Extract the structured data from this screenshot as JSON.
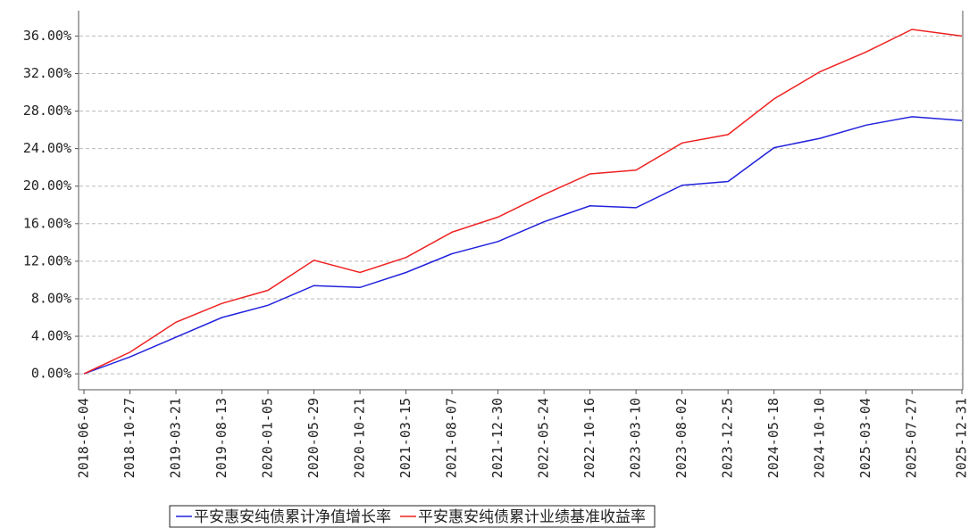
{
  "chart_data": {
    "type": "line",
    "x": [
      "2018-06-04",
      "2018-10-27",
      "2019-03-21",
      "2019-08-13",
      "2020-01-05",
      "2020-05-29",
      "2020-10-21",
      "2021-03-15",
      "2021-08-07",
      "2021-12-30",
      "2022-05-24",
      "2022-10-16",
      "2023-03-10",
      "2023-08-02",
      "2023-12-25",
      "2024-05-18",
      "2024-10-10",
      "2025-03-04",
      "2025-07-27",
      "2025-12-31"
    ],
    "series": [
      {
        "name": "平安惠安纯债累计净值增长率",
        "color": "#2222dd",
        "values": [
          0,
          1.8,
          3.9,
          6.0,
          7.3,
          9.4,
          9.2,
          10.8,
          12.8,
          14.1,
          16.2,
          17.9,
          17.7,
          20.1,
          20.5,
          24.1,
          25.1,
          26.5,
          27.4,
          27.0
        ]
      },
      {
        "name": "平安惠安纯债累计业绩基准收益率",
        "color": "#ee2222",
        "values": [
          0,
          2.3,
          5.5,
          7.5,
          8.9,
          12.1,
          10.8,
          12.4,
          15.1,
          16.7,
          19.1,
          21.3,
          21.7,
          24.6,
          25.5,
          29.3,
          32.2,
          34.3,
          36.7,
          36.0
        ]
      }
    ],
    "xlim": [
      "2018-06-04",
      "2025-12-31"
    ],
    "xticks": [
      "2018-06-04",
      "2018-10-27",
      "2019-03-21",
      "2019-08-13",
      "2020-01-05",
      "2020-05-29",
      "2020-10-21",
      "2021-03-15",
      "2021-08-07",
      "2021-12-30",
      "2022-05-24",
      "2022-10-16",
      "2023-03-10",
      "2023-08-02",
      "2023-12-25",
      "2024-05-18",
      "2024-10-10",
      "2025-03-04",
      "2025-07-27",
      "2025-12-31"
    ],
    "ylim": [
      -1.7,
      38.7
    ],
    "yticks": [
      {
        "value": 0,
        "label": "0.00%"
      },
      {
        "value": 4,
        "label": "4.00%"
      },
      {
        "value": 8,
        "label": "8.00%"
      },
      {
        "value": 12,
        "label": "12.00%"
      },
      {
        "value": 16,
        "label": "16.00%"
      },
      {
        "value": 20,
        "label": "20.00%"
      },
      {
        "value": 24,
        "label": "24.00%"
      },
      {
        "value": 28,
        "label": "28.00%"
      },
      {
        "value": 32,
        "label": "32.00%"
      },
      {
        "value": 36,
        "label": "36.00%"
      }
    ],
    "grid": true,
    "legend": "bottom"
  }
}
